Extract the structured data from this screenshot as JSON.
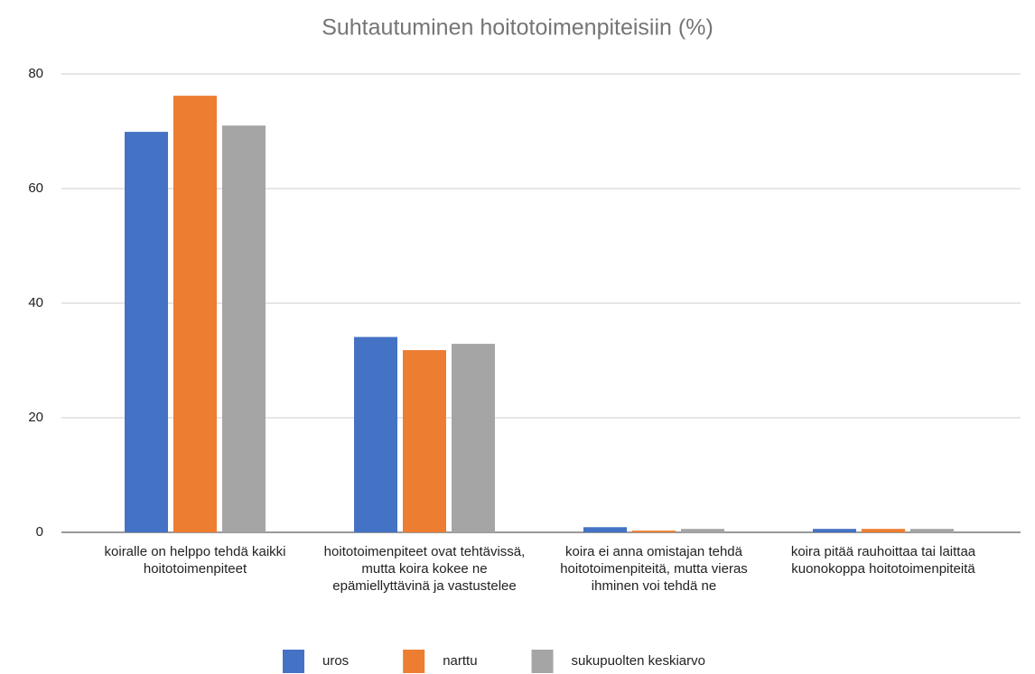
{
  "chart_data": {
    "type": "bar",
    "title": "Suhtautuminen hoitotoimenpiteisiin (%)",
    "categories": [
      "koiralle on helppo tehdä kaikki hoitotoimenpiteet",
      "hoitotoimenpiteet ovat tehtävissä, mutta koira kokee ne epämiellyttävinä ja vastustelee",
      "koira ei anna omistajan tehdä hoitotoimenpiteitä, mutta vieras ihminen voi tehdä ne",
      "koira pitää rauhoittaa tai laittaa kuonokoppa hoitotoimenpiteitä"
    ],
    "series": [
      {
        "name": "uros",
        "color": "#4472c4",
        "values": [
          69.9,
          34.1,
          0.9,
          0.6
        ]
      },
      {
        "name": "narttu",
        "color": "#ed7d31",
        "values": [
          76.2,
          31.8,
          0.3,
          0.6
        ]
      },
      {
        "name": "sukupuolten keskiarvo",
        "color": "#a5a5a5",
        "values": [
          71.0,
          32.9,
          0.6,
          0.6
        ]
      }
    ],
    "ylim": [
      0,
      80
    ],
    "yticks": [
      0,
      20,
      40,
      60,
      80
    ],
    "grid": true,
    "legend": "bottom"
  }
}
